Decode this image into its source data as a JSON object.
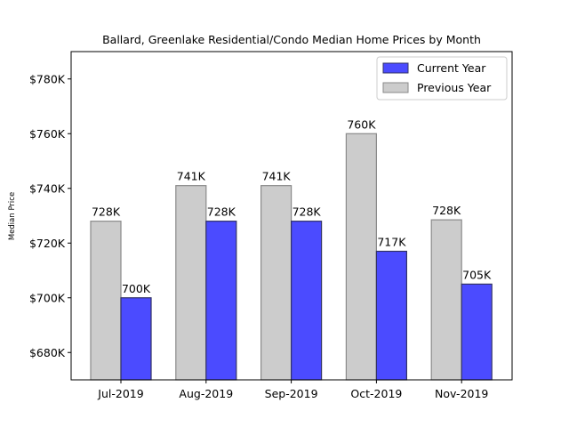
{
  "chart_data": {
    "type": "bar",
    "title": "Ballard, Greenlake Residential/Condo Median Home Prices by Month",
    "xlabel": "",
    "ylabel": "Median Price",
    "categories": [
      "Jul-2019",
      "Aug-2019",
      "Sep-2019",
      "Oct-2019",
      "Nov-2019"
    ],
    "ylim": [
      670000,
      790000
    ],
    "yticks": [
      680000,
      700000,
      720000,
      740000,
      760000,
      780000
    ],
    "ytick_labels": [
      "$680K",
      "$700K",
      "$720K",
      "$740K",
      "$760K",
      "$780K"
    ],
    "grid": false,
    "legend_position": "top-right",
    "series": [
      {
        "name": "Current Year",
        "color": "#4b4bff",
        "values": [
          700000,
          728000,
          728000,
          717000,
          705000
        ],
        "labels": [
          "700K",
          "728K",
          "728K",
          "717K",
          "705K"
        ]
      },
      {
        "name": "Previous Year",
        "color": "#cccccc",
        "values": [
          728000,
          741000,
          741000,
          760000,
          728500
        ],
        "labels": [
          "728K",
          "741K",
          "741K",
          "760K",
          "728K"
        ]
      }
    ]
  }
}
